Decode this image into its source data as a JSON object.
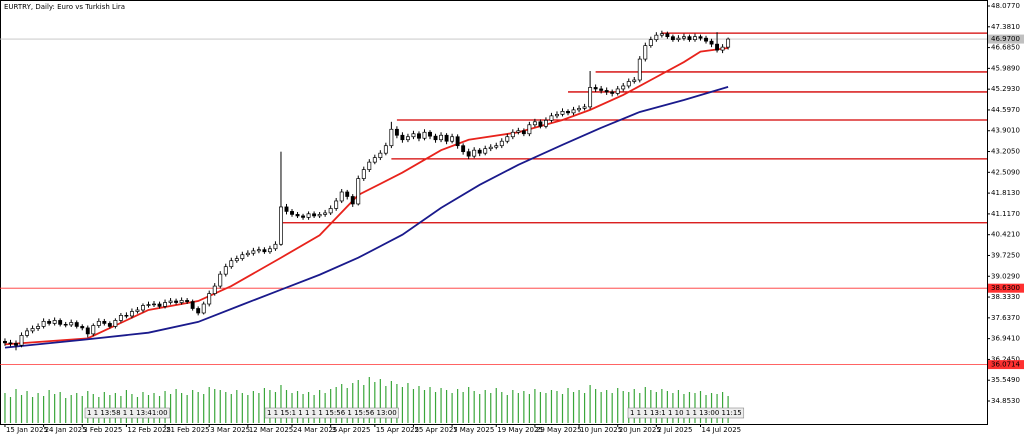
{
  "chart_data": {
    "type": "candlestick",
    "title": "EURTRY, Daily:  Euro vs Turkish Lira",
    "xlim": [
      -0.9,
      177.9
    ],
    "xticks": [
      {
        "value": 0,
        "label": "15 Jan 2025"
      },
      {
        "value": 7,
        "label": "24 Jan 2025"
      },
      {
        "value": 14,
        "label": "3 Feb 2025"
      },
      {
        "value": 22,
        "label": "12 Feb 2025"
      },
      {
        "value": 29,
        "label": "21 Feb 2025"
      },
      {
        "value": 37,
        "label": "3 Mar 2025"
      },
      {
        "value": 44,
        "label": "12 Mar 2025"
      },
      {
        "value": 52,
        "label": "24 Mar 2025"
      },
      {
        "value": 59,
        "label": "3 Apr 2025"
      },
      {
        "value": 67,
        "label": "15 Apr 2025"
      },
      {
        "value": 74,
        "label": "25 Apr 2025"
      },
      {
        "value": 81,
        "label": "7 May 2025"
      },
      {
        "value": 89,
        "label": "19 May 2025"
      },
      {
        "value": 96,
        "label": "29 May 2025"
      },
      {
        "value": 104,
        "label": "10 Jun 2025"
      },
      {
        "value": 111,
        "label": "20 Jun 2025"
      },
      {
        "value": 118,
        "label": "2 Jul 2025"
      },
      {
        "value": 126,
        "label": "14 Jul 2025"
      }
    ],
    "ylim": [
      34.083,
      48.278
    ],
    "yticks": [
      {
        "value": 48.077,
        "label": "48.0770"
      },
      {
        "value": 47.381,
        "label": "47.3810"
      },
      {
        "value": 46.685,
        "label": "46.6850"
      },
      {
        "value": 45.989,
        "label": "45.9890"
      },
      {
        "value": 45.293,
        "label": "45.2930"
      },
      {
        "value": 44.597,
        "label": "44.5970"
      },
      {
        "value": 43.901,
        "label": "43.9010"
      },
      {
        "value": 43.205,
        "label": "43.2050"
      },
      {
        "value": 42.509,
        "label": "42.5090"
      },
      {
        "value": 41.813,
        "label": "41.8130"
      },
      {
        "value": 41.117,
        "label": "41.1170"
      },
      {
        "value": 40.421,
        "label": "40.4210"
      },
      {
        "value": 39.725,
        "label": "39.7250"
      },
      {
        "value": 39.029,
        "label": "39.0290"
      },
      {
        "value": 38.333,
        "label": "38.3330"
      },
      {
        "value": 37.637,
        "label": "37.6370"
      },
      {
        "value": 36.941,
        "label": "36.9410"
      },
      {
        "value": 36.245,
        "label": "36.2450"
      },
      {
        "value": 35.549,
        "label": "35.5490"
      },
      {
        "value": 34.853,
        "label": "34.8530"
      }
    ],
    "up_color": "#ffffff",
    "down_color": "#000000",
    "open": [
      36.85,
      36.8,
      36.78,
      36.72,
      37.05,
      37.2,
      37.28,
      37.35,
      37.52,
      37.45,
      37.55,
      37.42,
      37.4,
      37.48,
      37.35,
      37.3,
      37.1,
      37.38,
      37.52,
      37.45,
      37.35,
      37.55,
      37.72,
      37.7,
      37.85,
      37.9,
      38.05,
      38.08,
      38.1,
      38.02,
      38.15,
      38.2,
      38.15,
      38.22,
      38.18,
      37.95,
      37.8,
      38.1,
      38.45,
      38.7,
      39.1,
      39.35,
      39.55,
      39.62,
      39.75,
      39.8,
      39.88,
      39.92,
      39.85,
      39.95,
      40.1,
      41.35,
      41.2,
      41.1,
      41.05,
      41.0,
      41.12,
      41.05,
      41.1,
      41.15,
      41.3,
      41.55,
      41.85,
      41.7,
      41.45,
      42.3,
      42.6,
      42.85,
      43.0,
      43.15,
      43.4,
      43.95,
      43.75,
      43.6,
      43.7,
      43.8,
      43.65,
      43.85,
      43.72,
      43.6,
      43.75,
      43.55,
      43.7,
      43.4,
      43.2,
      43.05,
      43.25,
      43.15,
      43.3,
      43.35,
      43.4,
      43.55,
      43.7,
      43.85,
      43.9,
      43.8,
      44.1,
      44.2,
      44.05,
      44.25,
      44.4,
      44.45,
      44.55,
      44.5,
      44.6,
      44.65,
      44.7,
      45.35,
      45.3,
      45.25,
      45.2,
      45.15,
      45.3,
      45.4,
      45.55,
      45.6,
      46.3,
      46.75,
      46.95,
      47.1,
      47.15,
      47.05,
      46.95,
      47.0,
      47.05,
      46.95,
      47.05,
      47.0,
      46.9,
      46.8,
      46.6,
      46.7
    ],
    "high": [
      36.95,
      36.9,
      36.88,
      37.15,
      37.3,
      37.38,
      37.45,
      37.62,
      37.6,
      37.65,
      37.62,
      37.5,
      37.58,
      37.55,
      37.42,
      37.38,
      37.45,
      37.62,
      37.6,
      37.52,
      37.62,
      37.8,
      37.82,
      37.95,
      38.0,
      38.12,
      38.18,
      38.2,
      38.18,
      38.25,
      38.3,
      38.28,
      38.32,
      38.3,
      38.25,
      38.02,
      38.18,
      38.55,
      38.8,
      39.2,
      39.45,
      39.65,
      39.72,
      39.85,
      39.9,
      39.98,
      40.02,
      40.0,
      40.05,
      40.2,
      43.2,
      41.45,
      41.28,
      41.18,
      41.12,
      41.2,
      41.2,
      41.18,
      41.25,
      41.4,
      41.65,
      41.95,
      41.92,
      41.78,
      42.4,
      42.7,
      42.95,
      43.1,
      43.25,
      43.5,
      44.2,
      44.05,
      43.85,
      43.8,
      43.9,
      43.88,
      43.95,
      43.92,
      43.8,
      43.85,
      43.82,
      43.8,
      43.78,
      43.48,
      43.3,
      43.35,
      43.32,
      43.4,
      43.45,
      43.5,
      43.65,
      43.8,
      43.95,
      44.0,
      43.98,
      44.2,
      44.3,
      44.28,
      44.35,
      44.5,
      44.55,
      44.65,
      44.62,
      44.7,
      44.75,
      44.8,
      45.9,
      45.45,
      45.4,
      45.35,
      45.28,
      45.4,
      45.5,
      45.65,
      45.7,
      46.4,
      46.85,
      47.05,
      47.2,
      47.25,
      47.22,
      47.12,
      47.1,
      47.15,
      47.12,
      47.15,
      47.12,
      47.08,
      46.98,
      47.2,
      46.8,
      47.02
    ],
    "low": [
      36.7,
      36.68,
      36.55,
      36.65,
      36.98,
      37.12,
      37.2,
      37.28,
      37.38,
      37.38,
      37.35,
      37.32,
      37.33,
      37.28,
      37.22,
      36.98,
      37.02,
      37.3,
      37.38,
      37.28,
      37.28,
      37.48,
      37.62,
      37.62,
      37.78,
      37.82,
      37.98,
      38.0,
      37.95,
      37.95,
      38.08,
      38.08,
      38.08,
      38.1,
      37.88,
      37.72,
      37.75,
      38.02,
      38.38,
      38.62,
      39.02,
      39.28,
      39.48,
      39.55,
      39.68,
      39.72,
      39.8,
      39.78,
      39.78,
      39.88,
      40.05,
      41.1,
      41.02,
      40.98,
      40.92,
      40.92,
      40.98,
      40.98,
      41.02,
      41.08,
      41.22,
      41.48,
      41.6,
      41.35,
      41.4,
      42.22,
      42.52,
      42.78,
      42.92,
      43.08,
      43.32,
      43.65,
      43.5,
      43.52,
      43.62,
      43.55,
      43.58,
      43.62,
      43.5,
      43.52,
      43.45,
      43.48,
      43.3,
      43.1,
      42.95,
      42.98,
      43.05,
      43.08,
      43.22,
      43.28,
      43.32,
      43.48,
      43.62,
      43.78,
      43.72,
      43.72,
      44.02,
      43.98,
      43.98,
      44.18,
      44.32,
      44.38,
      44.42,
      44.42,
      44.52,
      44.58,
      44.62,
      45.2,
      45.15,
      45.1,
      45.05,
      45.08,
      45.22,
      45.32,
      45.48,
      45.52,
      46.22,
      46.68,
      46.88,
      47.02,
      46.98,
      46.88,
      46.88,
      46.92,
      46.88,
      46.88,
      46.92,
      46.82,
      46.7,
      46.52,
      46.5,
      46.62
    ],
    "close": [
      36.8,
      36.78,
      36.72,
      37.05,
      37.2,
      37.28,
      37.35,
      37.52,
      37.45,
      37.55,
      37.42,
      37.4,
      37.48,
      37.35,
      37.3,
      37.1,
      37.38,
      37.52,
      37.45,
      37.35,
      37.55,
      37.72,
      37.7,
      37.85,
      37.9,
      38.05,
      38.08,
      38.1,
      38.02,
      38.15,
      38.2,
      38.15,
      38.22,
      38.18,
      37.95,
      37.8,
      38.1,
      38.45,
      38.7,
      39.1,
      39.35,
      39.55,
      39.62,
      39.75,
      39.8,
      39.88,
      39.92,
      39.85,
      39.95,
      40.1,
      41.35,
      41.2,
      41.1,
      41.05,
      41.0,
      41.12,
      41.05,
      41.1,
      41.15,
      41.3,
      41.55,
      41.85,
      41.7,
      41.45,
      42.3,
      42.6,
      42.85,
      43.0,
      43.15,
      43.4,
      43.95,
      43.75,
      43.6,
      43.7,
      43.8,
      43.65,
      43.85,
      43.72,
      43.6,
      43.75,
      43.55,
      43.7,
      43.4,
      43.2,
      43.05,
      43.25,
      43.15,
      43.3,
      43.35,
      43.4,
      43.55,
      43.7,
      43.85,
      43.9,
      43.8,
      44.1,
      44.2,
      44.05,
      44.25,
      44.4,
      44.45,
      44.55,
      44.5,
      44.6,
      44.65,
      44.7,
      45.35,
      45.3,
      45.25,
      45.2,
      45.15,
      45.3,
      45.4,
      45.55,
      45.6,
      46.3,
      46.75,
      46.95,
      47.1,
      47.15,
      47.05,
      46.95,
      47.0,
      47.05,
      46.95,
      47.05,
      47.0,
      46.9,
      46.8,
      46.6,
      46.7,
      46.97
    ],
    "moving_averages": [
      {
        "color": "#e8231c",
        "x": [
          0,
          15,
          26,
          35,
          41,
          50,
          57,
          64,
          72,
          79,
          84,
          93,
          101,
          106,
          112,
          117,
          123,
          126,
          131
        ],
        "values": [
          36.75,
          36.95,
          37.9,
          38.2,
          38.7,
          39.65,
          40.4,
          41.75,
          42.5,
          43.25,
          43.6,
          43.85,
          44.26,
          44.6,
          45.1,
          45.6,
          46.2,
          46.55,
          46.67
        ]
      },
      {
        "color": "#1a1a8c",
        "x": [
          0,
          14,
          26,
          35,
          43,
          50,
          57,
          64,
          72,
          79,
          86,
          93,
          101,
          108,
          115,
          123,
          131
        ],
        "values": [
          36.64,
          36.9,
          37.14,
          37.5,
          38.08,
          38.58,
          39.08,
          39.65,
          40.42,
          41.32,
          42.09,
          42.76,
          43.43,
          44.0,
          44.53,
          44.93,
          45.37
        ]
      }
    ],
    "volume": {
      "color": "#3aa63a",
      "values": [
        30,
        26,
        34,
        28,
        32,
        26,
        30,
        27,
        33,
        29,
        31,
        25,
        28,
        30,
        27,
        32,
        29,
        26,
        31,
        28,
        30,
        27,
        33,
        29,
        26,
        31,
        28,
        30,
        27,
        32,
        29,
        34,
        30,
        28,
        33,
        31,
        29,
        36,
        34,
        33,
        31,
        29,
        33,
        30,
        28,
        32,
        30,
        35,
        33,
        31,
        38,
        33,
        30,
        32,
        29,
        31,
        28,
        33,
        30,
        34,
        36,
        39,
        35,
        40,
        43,
        38,
        46,
        41,
        44,
        37,
        42,
        39,
        36,
        40,
        34,
        37,
        33,
        36,
        31,
        35,
        33,
        30,
        34,
        31,
        36,
        32,
        29,
        33,
        30,
        35,
        31,
        28,
        33,
        30,
        32,
        29,
        34,
        31,
        30,
        33,
        32,
        29,
        35,
        31,
        33,
        30,
        38,
        34,
        31,
        33,
        30,
        35,
        32,
        31,
        34,
        30,
        36,
        33,
        31,
        34,
        32,
        30,
        33,
        29,
        31,
        30,
        32,
        28,
        30,
        29,
        31,
        27
      ]
    },
    "volume_lim": [
      0,
      100
    ],
    "levels": {
      "color": "#d40000",
      "items": [
        {
          "x": 119,
          "value": 47.17
        },
        {
          "x": 107,
          "value": 45.87
        },
        {
          "x": 102,
          "value": 45.2
        },
        {
          "x": 71,
          "value": 44.26
        },
        {
          "x": 70,
          "value": 42.96
        },
        {
          "x": 50,
          "value": 40.82
        }
      ]
    },
    "price_lines": [
      {
        "value": 38.63,
        "label": "38.6300",
        "color": "#ff3030"
      },
      {
        "value": 36.0714,
        "label": "36.0714",
        "color": "#ff3030"
      }
    ],
    "current_price": {
      "value": 46.97,
      "label": "46.9700",
      "color": "#c0c0c0"
    },
    "annotations": [
      "1 1 13:58 1 1 13:41:00",
      "1 1 15:1 1 1 1 1 15:56 1 15:56 13:00",
      "1 1 1 13:1 1 10 1 1 13:00 11:15"
    ]
  }
}
